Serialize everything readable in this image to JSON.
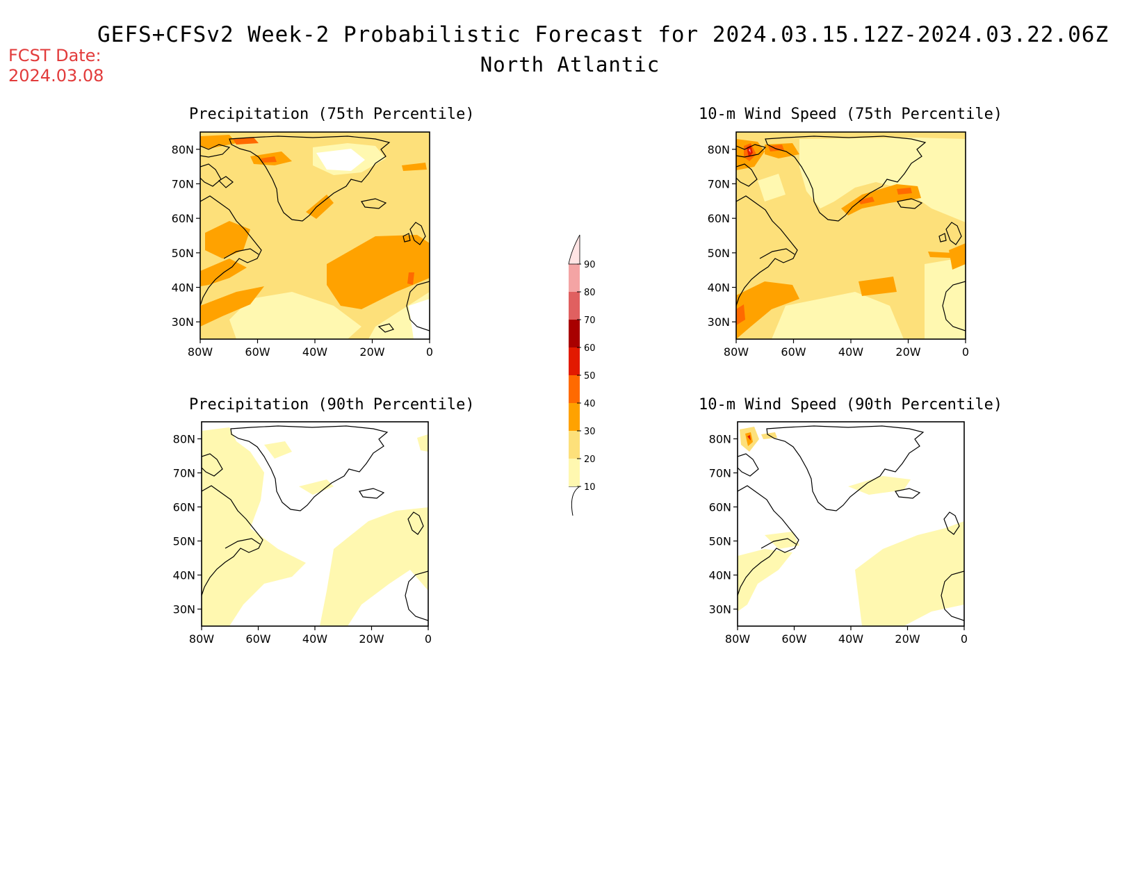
{
  "header": {
    "title": "GEFS+CFSv2 Week-2 Probabilistic Forecast for 2024.03.15.12Z-2024.03.22.06Z",
    "subtitle": "North Atlantic",
    "fcst_label": "FCST Date:",
    "fcst_date": "2024.03.08"
  },
  "panels": [
    {
      "title": "Precipitation (75th Percentile)"
    },
    {
      "title": "10-m Wind Speed (75th Percentile)"
    },
    {
      "title": "Precipitation (90th Percentile)"
    },
    {
      "title": "10-m Wind Speed (90th Percentile)"
    }
  ],
  "axes": {
    "lat_labels": [
      "80N",
      "70N",
      "60N",
      "50N",
      "40N",
      "30N"
    ],
    "lon_labels": [
      "80W",
      "60W",
      "40W",
      "20W",
      "0"
    ]
  },
  "colorbar": {
    "levels": [
      "10",
      "20",
      "30",
      "40",
      "50",
      "60",
      "70",
      "80",
      "90"
    ],
    "colors": [
      "#fff8b0",
      "#fde07a",
      "#ffa200",
      "#ff6a00",
      "#e21a00",
      "#a80000",
      "#e06060",
      "#f4a4a4",
      "#ffe4e4"
    ]
  }
}
